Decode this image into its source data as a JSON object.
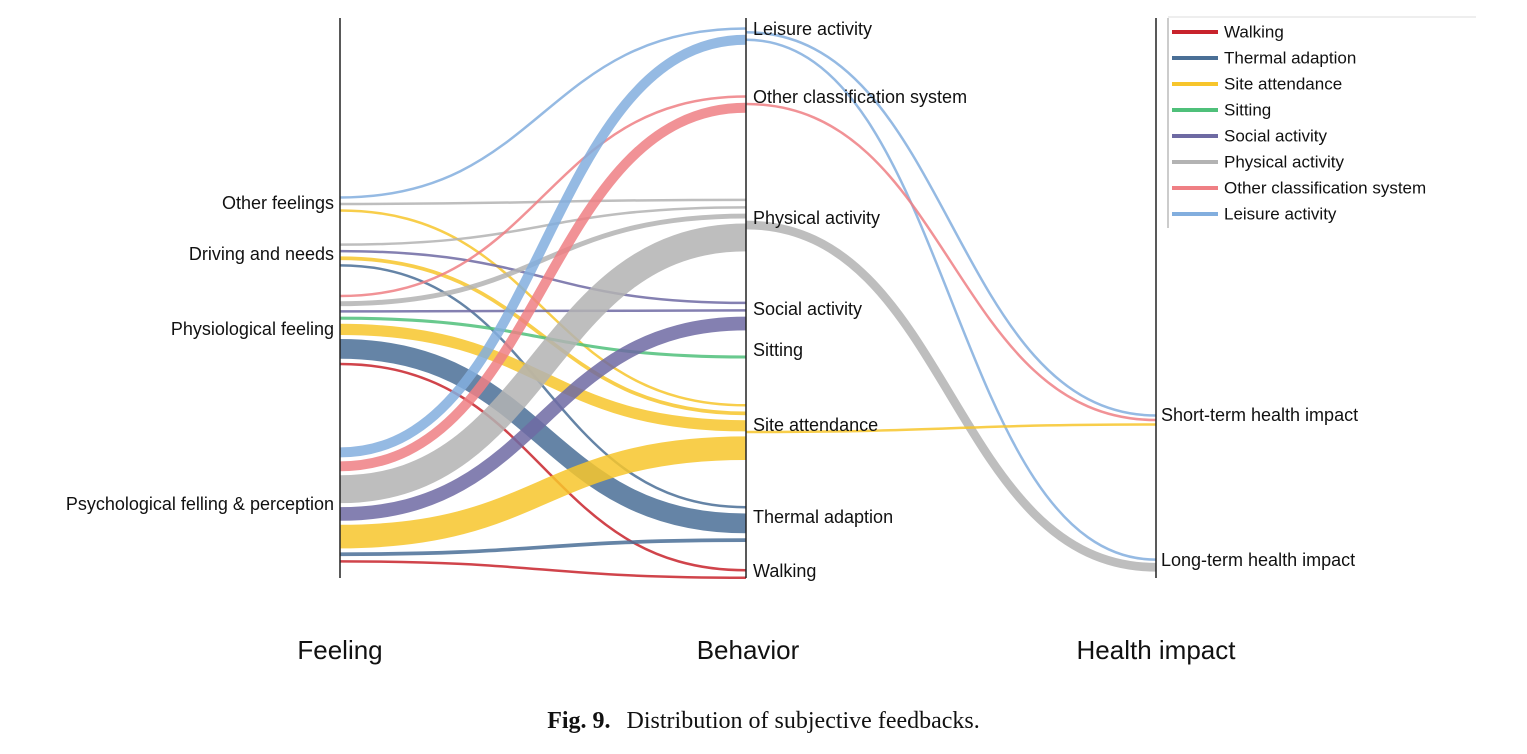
{
  "chart_data": {
    "type": "sankey",
    "axes": [
      "Feeling",
      "Behavior",
      "Health impact"
    ],
    "feeling_nodes": [
      "Other feelings",
      "Driving and needs",
      "Physiological feeling",
      "Psychological felling & perception"
    ],
    "behavior_nodes": [
      "Leisure activity",
      "Other classification system",
      "Physical activity",
      "Social activity",
      "Sitting",
      "Site attendance",
      "Thermal adaption",
      "Walking"
    ],
    "health_nodes": [
      "Short-term health impact",
      "Long-term health impact"
    ],
    "legend": [
      {
        "name": "Walking",
        "color": "#c8232c"
      },
      {
        "name": "Thermal adaption",
        "color": "#4a6f96"
      },
      {
        "name": "Site attendance",
        "color": "#f7c52b"
      },
      {
        "name": "Sitting",
        "color": "#4fc07a"
      },
      {
        "name": "Social activity",
        "color": "#6e6aa3"
      },
      {
        "name": "Physical activity",
        "color": "#b3b3b3"
      },
      {
        "name": "Other classification system",
        "color": "#ef7f84"
      },
      {
        "name": "Leisure activity",
        "color": "#82aede"
      }
    ],
    "flows": [
      {
        "source": "Other feelings",
        "target": "Leisure activity",
        "weight": 2,
        "color": "#82aede"
      },
      {
        "source": "Other feelings",
        "target": "Physical activity",
        "weight": 3,
        "color": "#b3b3b3"
      },
      {
        "source": "Other feelings",
        "target": "Site attendance",
        "weight": 2,
        "color": "#f7c52b"
      },
      {
        "source": "Driving and needs",
        "target": "Physical activity",
        "weight": 2,
        "color": "#b3b3b3"
      },
      {
        "source": "Driving and needs",
        "target": "Social activity",
        "weight": 2,
        "color": "#6e6aa3"
      },
      {
        "source": "Driving and needs",
        "target": "Site attendance",
        "weight": 6,
        "color": "#f7c52b"
      },
      {
        "source": "Driving and needs",
        "target": "Thermal adaption",
        "weight": 2,
        "color": "#4a6f96"
      },
      {
        "source": "Physiological feeling",
        "target": "Other classification system",
        "weight": 2,
        "color": "#ef7f84"
      },
      {
        "source": "Physiological feeling",
        "target": "Physical activity",
        "weight": 8,
        "color": "#b3b3b3"
      },
      {
        "source": "Physiological feeling",
        "target": "Social activity",
        "weight": 2,
        "color": "#6e6aa3"
      },
      {
        "source": "Physiological feeling",
        "target": "Sitting",
        "weight": 5,
        "color": "#4fc07a"
      },
      {
        "source": "Physiological feeling",
        "target": "Site attendance",
        "weight": 18,
        "color": "#f7c52b"
      },
      {
        "source": "Physiological feeling",
        "target": "Thermal adaption",
        "weight": 32,
        "color": "#4a6f96"
      },
      {
        "source": "Physiological feeling",
        "target": "Walking",
        "weight": 2,
        "color": "#c8232c"
      },
      {
        "source": "Psychological felling & perception",
        "target": "Leisure activity",
        "weight": 16,
        "color": "#82aede"
      },
      {
        "source": "Psychological felling & perception",
        "target": "Other classification system",
        "weight": 16,
        "color": "#ef7f84"
      },
      {
        "source": "Psychological felling & perception",
        "target": "Physical activity",
        "weight": 45,
        "color": "#b3b3b3"
      },
      {
        "source": "Psychological felling & perception",
        "target": "Social activity",
        "weight": 22,
        "color": "#6e6aa3"
      },
      {
        "source": "Psychological felling & perception",
        "target": "Site attendance",
        "weight": 38,
        "color": "#f7c52b"
      },
      {
        "source": "Psychological felling & perception",
        "target": "Thermal adaption",
        "weight": 6,
        "color": "#4a6f96"
      },
      {
        "source": "Psychological felling & perception",
        "target": "Walking",
        "weight": 3,
        "color": "#c8232c"
      },
      {
        "source": "Leisure activity",
        "target": "Short-term health impact",
        "weight": 2,
        "color": "#82aede"
      },
      {
        "source": "Leisure activity",
        "target": "Long-term health impact",
        "weight": 2,
        "color": "#82aede"
      },
      {
        "source": "Other classification system",
        "target": "Short-term health impact",
        "weight": 2,
        "color": "#ef7f84"
      },
      {
        "source": "Physical activity",
        "target": "Long-term health impact",
        "weight": 14,
        "color": "#b3b3b3"
      },
      {
        "source": "Site attendance",
        "target": "Short-term health impact",
        "weight": 2,
        "color": "#f7c52b"
      }
    ]
  },
  "caption": {
    "label": "Fig. 9.",
    "text": "Distribution of subjective feedbacks."
  }
}
